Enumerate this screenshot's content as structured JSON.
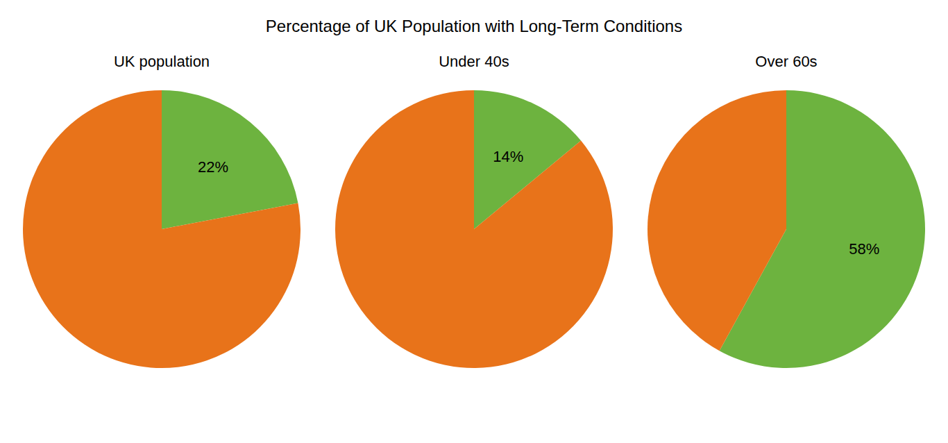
{
  "title": "Percentage of UK Population with Long-Term Conditions",
  "chart_data": [
    {
      "type": "pie",
      "title": "UK population",
      "values": [
        22,
        78
      ],
      "value_labels": [
        "22%",
        null
      ],
      "colors": [
        "#6DB33F",
        "#E8731A"
      ]
    },
    {
      "type": "pie",
      "title": "Under 40s",
      "values": [
        14,
        86
      ],
      "value_labels": [
        "14%",
        null
      ],
      "colors": [
        "#6DB33F",
        "#E8731A"
      ]
    },
    {
      "type": "pie",
      "title": "Over 60s",
      "values": [
        58,
        42
      ],
      "value_labels": [
        "58%",
        null
      ],
      "colors": [
        "#6DB33F",
        "#E8731A"
      ]
    }
  ]
}
